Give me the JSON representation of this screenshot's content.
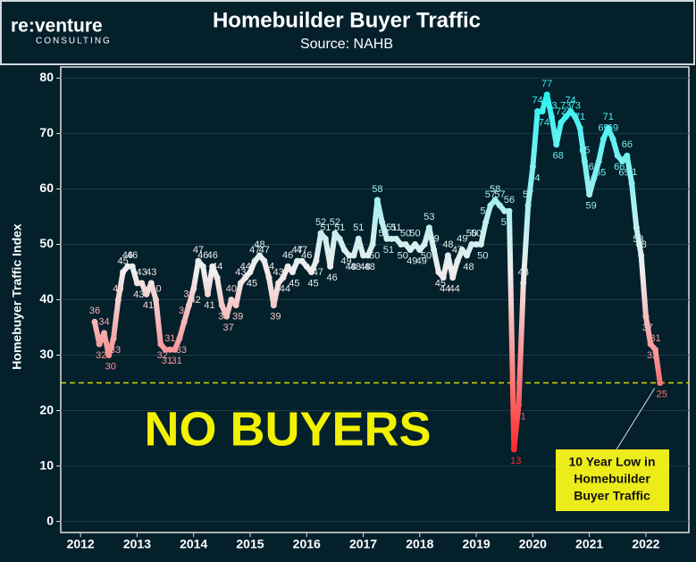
{
  "chart_data": {
    "type": "line",
    "title": "Homebuilder Buyer Traffic",
    "subtitle": "Source: NAHB",
    "logo": "re:venture",
    "logo_sub": "CONSULTING",
    "y_label": "Homebuyer Traffic Index",
    "x": [
      2012.25,
      2012.333,
      2012.417,
      2012.5,
      2012.583,
      2012.667,
      2012.75,
      2012.833,
      2012.917,
      2013,
      2013.083,
      2013.167,
      2013.25,
      2013.333,
      2013.417,
      2013.5,
      2013.583,
      2013.667,
      2013.75,
      2013.833,
      2013.917,
      2014,
      2014.083,
      2014.167,
      2014.25,
      2014.333,
      2014.417,
      2014.5,
      2014.583,
      2014.667,
      2014.75,
      2014.833,
      2014.917,
      2015,
      2015.083,
      2015.167,
      2015.25,
      2015.333,
      2015.417,
      2015.5,
      2015.583,
      2015.667,
      2015.75,
      2015.833,
      2015.917,
      2016,
      2016.083,
      2016.167,
      2016.25,
      2016.333,
      2016.417,
      2016.5,
      2016.583,
      2016.667,
      2016.75,
      2016.833,
      2016.917,
      2017,
      2017.083,
      2017.167,
      2017.25,
      2017.333,
      2017.417,
      2017.5,
      2017.583,
      2017.667,
      2017.75,
      2017.833,
      2017.917,
      2018,
      2018.083,
      2018.167,
      2018.25,
      2018.333,
      2018.417,
      2018.5,
      2018.583,
      2018.667,
      2018.75,
      2018.833,
      2018.917,
      2019,
      2019.083,
      2019.167,
      2019.25,
      2019.333,
      2019.417,
      2019.5,
      2019.583,
      2019.667,
      2019.75,
      2019.833,
      2019.917,
      2020,
      2020.083,
      2020.167,
      2020.25,
      2020.333,
      2020.417,
      2020.5,
      2020.583,
      2020.667,
      2020.75,
      2020.833,
      2020.917,
      2021,
      2021.083,
      2021.167,
      2021.25,
      2021.333,
      2021.417,
      2021.5,
      2021.583,
      2021.667,
      2021.75,
      2021.833,
      2021.917,
      2022,
      2022.083,
      2022.167,
      2022.25
    ],
    "values": [
      36,
      32,
      34,
      30,
      33,
      40,
      45,
      46,
      46,
      43,
      43,
      41,
      43,
      40,
      32,
      31,
      31,
      31,
      33,
      36,
      39,
      42,
      47,
      46,
      41,
      46,
      44,
      39,
      37,
      40,
      39,
      43,
      44,
      45,
      47,
      48,
      47,
      44,
      39,
      43,
      44,
      46,
      45,
      47,
      47,
      46,
      45,
      47,
      52,
      51,
      46,
      52,
      51,
      49,
      48,
      48,
      51,
      48,
      48,
      50,
      58,
      54,
      51,
      51,
      51,
      50,
      50,
      49,
      50,
      49,
      50,
      53,
      49,
      45,
      44,
      48,
      44,
      47,
      49,
      48,
      50,
      50,
      50,
      54,
      57,
      58,
      57,
      56,
      56,
      13,
      21,
      43,
      57,
      64,
      74,
      74,
      77,
      73,
      68,
      72,
      73,
      74,
      73,
      71,
      65,
      59,
      62,
      65,
      69,
      71,
      69,
      66,
      65,
      66,
      61,
      53,
      48,
      37,
      32,
      31,
      25
    ],
    "colors": {
      "low": "#ff2b2b",
      "mid": "#f2eeee",
      "high": "#2ef2f2"
    },
    "xlim": [
      2011.65,
      2022.76
    ],
    "xticks": [
      2012,
      2013,
      2014,
      2015,
      2016,
      2017,
      2018,
      2019,
      2020,
      2021,
      2022
    ],
    "ylim": [
      -2,
      82
    ],
    "yticks": [
      0,
      10,
      20,
      30,
      40,
      50,
      60,
      70,
      80
    ],
    "grid": true,
    "reference_line": {
      "value": 25,
      "color": "#d6d600"
    },
    "annotation": "NO BUYERS",
    "annotation_box": [
      "10 Year Low in",
      "Homebuilder",
      "Buyer Traffic"
    ]
  }
}
